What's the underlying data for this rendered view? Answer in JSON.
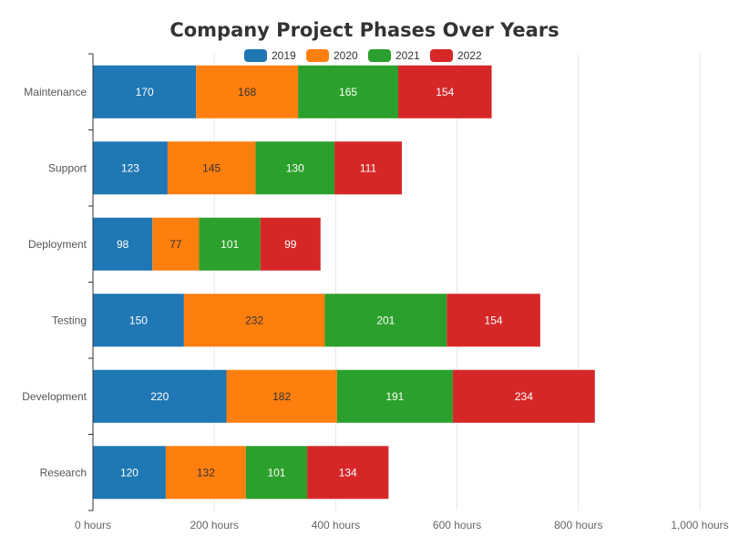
{
  "chart_data": {
    "type": "bar",
    "orientation": "horizontal",
    "stacked": true,
    "title": "Company Project Phases Over Years",
    "categories": [
      "Research",
      "Development",
      "Testing",
      "Deployment",
      "Support",
      "Maintenance"
    ],
    "series": [
      {
        "name": "2019",
        "color": "#1f77b4",
        "label_color": "#ffffff",
        "values": [
          120,
          220,
          150,
          98,
          123,
          170
        ]
      },
      {
        "name": "2020",
        "color": "#ff7f0e",
        "label_color": "#333333",
        "values": [
          132,
          182,
          232,
          77,
          145,
          168
        ]
      },
      {
        "name": "2021",
        "color": "#2ca02c",
        "label_color": "#ffffff",
        "values": [
          101,
          191,
          201,
          101,
          130,
          165
        ]
      },
      {
        "name": "2022",
        "color": "#d62728",
        "label_color": "#ffffff",
        "values": [
          134,
          234,
          154,
          99,
          111,
          154
        ]
      }
    ],
    "xlim": [
      0,
      1000
    ],
    "x_ticks": [
      0,
      200,
      400,
      600,
      800,
      1000
    ],
    "x_tick_labels": [
      "0 hours",
      "200 hours",
      "400 hours",
      "600 hours",
      "800 hours",
      "1,000 hours"
    ],
    "grid": true,
    "legend_position": "top-center"
  }
}
